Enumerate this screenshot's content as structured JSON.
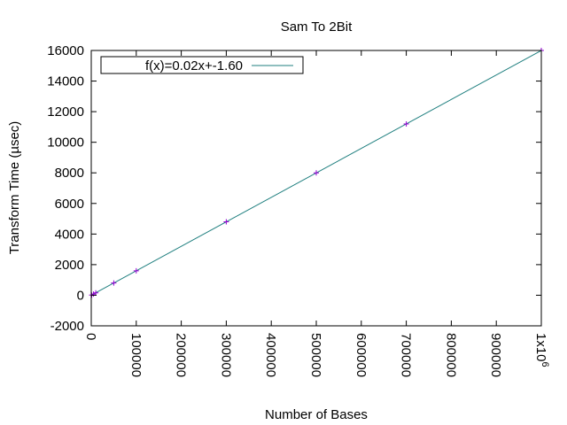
{
  "chart_data": {
    "type": "line",
    "title": "Sam To 2Bit",
    "xlabel": "Number of Bases",
    "ylabel": "Transform Time (µsec)",
    "xlim": [
      0,
      1000000
    ],
    "ylim": [
      -2000,
      16000
    ],
    "x_ticks": [
      0,
      100000,
      200000,
      300000,
      400000,
      500000,
      600000,
      700000,
      800000,
      900000,
      1000000
    ],
    "x_tick_labels": [
      "0",
      "100000",
      "200000",
      "300000",
      "400000",
      "500000",
      "600000",
      "700000",
      "800000",
      "900000",
      "1x10"
    ],
    "x_tick_label_superscript": "6",
    "y_ticks": [
      -2000,
      0,
      2000,
      4000,
      6000,
      8000,
      10000,
      12000,
      14000,
      16000
    ],
    "y_tick_labels": [
      "-2000",
      "0",
      "2000",
      "4000",
      "6000",
      "8000",
      "10000",
      "12000",
      "14000",
      "16000"
    ],
    "grid": false,
    "legend_position": "top-left",
    "points": {
      "color": "#9400d3",
      "x": [
        1000,
        5000,
        10000,
        50000,
        100000,
        300000,
        500000,
        700000,
        1000000
      ],
      "y": [
        14,
        78,
        158,
        798,
        1598,
        4798,
        7998,
        11198,
        15998
      ]
    },
    "series": [
      {
        "name": "f(x)=0.02x+-1.60",
        "color": "#1f7f7f",
        "slope": 0.016,
        "intercept": -1.6
      }
    ]
  }
}
